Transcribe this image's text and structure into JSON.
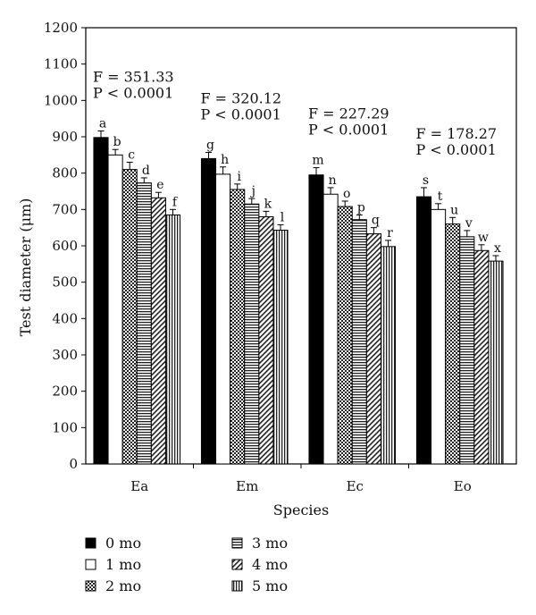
{
  "chart_data": {
    "type": "bar",
    "title": "",
    "xlabel": "Species",
    "ylabel": "Test diameter (μm)",
    "ylim": [
      0,
      1200
    ],
    "yticks": [
      0,
      100,
      200,
      300,
      400,
      500,
      600,
      700,
      800,
      900,
      1000,
      1100,
      1200
    ],
    "grid": false,
    "legend_position": "bottom",
    "categories": [
      "Ea",
      "Em",
      "Ec",
      "Eo"
    ],
    "series": [
      {
        "name": "0 mo",
        "pattern": "solid",
        "values": [
          898,
          840,
          795,
          735
        ],
        "errors": [
          18,
          17,
          20,
          25
        ],
        "letters": [
          "a",
          "g",
          "m",
          "s"
        ]
      },
      {
        "name": "1 mo",
        "pattern": "white",
        "values": [
          850,
          797,
          742,
          700
        ],
        "errors": [
          15,
          20,
          18,
          16
        ],
        "letters": [
          "b",
          "h",
          "n",
          "t"
        ]
      },
      {
        "name": "2 mo",
        "pattern": "checker",
        "values": [
          810,
          755,
          708,
          660
        ],
        "errors": [
          20,
          15,
          15,
          18
        ],
        "letters": [
          "c",
          "i",
          "o",
          "u"
        ]
      },
      {
        "name": "3 mo",
        "pattern": "hlines",
        "values": [
          773,
          715,
          672,
          625
        ],
        "errors": [
          14,
          15,
          13,
          17
        ],
        "letters": [
          "d",
          "j",
          "p",
          "v"
        ]
      },
      {
        "name": "4 mo",
        "pattern": "diag",
        "values": [
          732,
          680,
          633,
          587
        ],
        "errors": [
          15,
          15,
          17,
          16
        ],
        "letters": [
          "e",
          "k",
          "q",
          "w"
        ]
      },
      {
        "name": "5 mo",
        "pattern": "vlines",
        "values": [
          685,
          643,
          598,
          558
        ],
        "errors": [
          15,
          15,
          17,
          15
        ],
        "letters": [
          "f",
          "l",
          "r",
          "x"
        ]
      }
    ],
    "annotations": [
      {
        "category": "Ea",
        "f_text": "F = 351.33",
        "p_text": "P < 0.0001"
      },
      {
        "category": "Em",
        "f_text": "F = 320.12",
        "p_text": "P < 0.0001"
      },
      {
        "category": "Ec",
        "f_text": "F = 227.29",
        "p_text": "P < 0.0001"
      },
      {
        "category": "Eo",
        "f_text": "F = 178.27",
        "p_text": "P < 0.0001"
      }
    ],
    "legend_order": [
      "0 mo",
      "3 mo",
      "1 mo",
      "4 mo",
      "2 mo",
      "5 mo"
    ]
  }
}
